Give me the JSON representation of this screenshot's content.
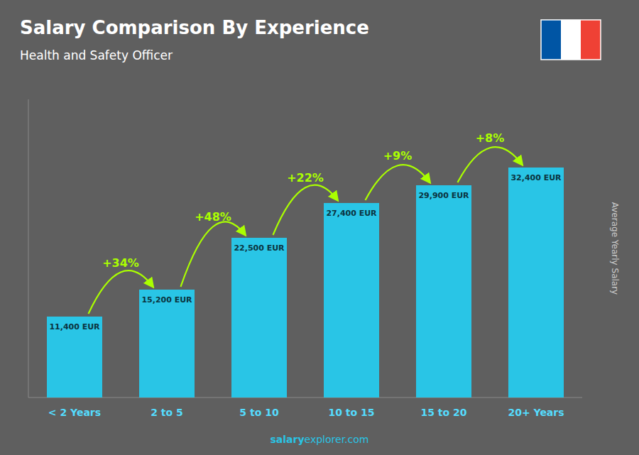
{
  "chart_data": {
    "type": "bar",
    "title": "Salary Comparison By Experience",
    "subtitle": "Health and Safety Officer",
    "categories": [
      "< 2 Years",
      "2 to 5",
      "5 to 10",
      "10 to 15",
      "15 to 20",
      "20+ Years"
    ],
    "values": [
      11400,
      15200,
      22500,
      27400,
      29900,
      32400
    ],
    "value_labels": [
      "11,400 EUR",
      "15,200 EUR",
      "22,500 EUR",
      "27,400 EUR",
      "29,900 EUR",
      "32,400 EUR"
    ],
    "data_labels": true,
    "annotations": [
      "+34%",
      "+48%",
      "+22%",
      "+9%",
      "+8%"
    ],
    "ylabel": "Average Yearly Salary",
    "watermark": [
      "salary",
      "explorer.com"
    ],
    "color": "#29c5e6",
    "ylim": [
      0,
      42000
    ],
    "tick_labels": "x",
    "grid": false
  }
}
